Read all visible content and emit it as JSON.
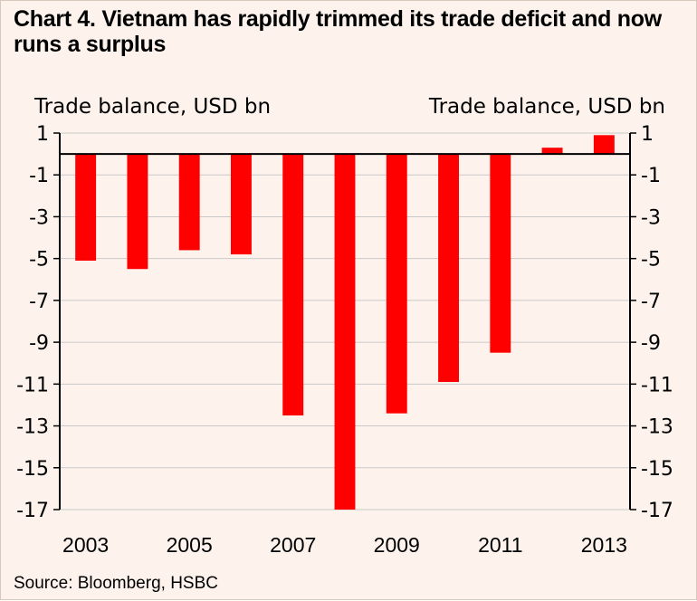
{
  "title": "Chart 4. Vietnam has rapidly trimmed its trade deficit and now runs a surplus",
  "source": "Source: Bloomberg, HSBC",
  "colors": {
    "bar": "#ff0000",
    "background": "#fdf3ec",
    "grid": "#c8c8c8"
  },
  "chart_data": {
    "type": "bar",
    "title": "Chart 4. Vietnam has rapidly trimmed its trade deficit and now runs a surplus",
    "ylabel_left": "Trade balance, USD bn",
    "ylabel_right": "Trade balance, USD bn",
    "categories": [
      "2003",
      "2004",
      "2005",
      "2006",
      "2007",
      "2008",
      "2009",
      "2010",
      "2011",
      "2012",
      "2013"
    ],
    "x_tick_labels": [
      "2003",
      "2005",
      "2007",
      "2009",
      "2011",
      "2013"
    ],
    "series": [
      {
        "values": [
          -5.1,
          -5.5,
          -4.6,
          -4.8,
          -12.5,
          -17.2,
          -12.4,
          -10.9,
          -9.5,
          0.3,
          0.9
        ]
      }
    ],
    "y_ticks": [
      1,
      -1,
      -3,
      -5,
      -7,
      -9,
      -11,
      -13,
      -15,
      -17
    ],
    "ylim": [
      -17,
      1
    ],
    "grid": true,
    "legend": "none"
  }
}
